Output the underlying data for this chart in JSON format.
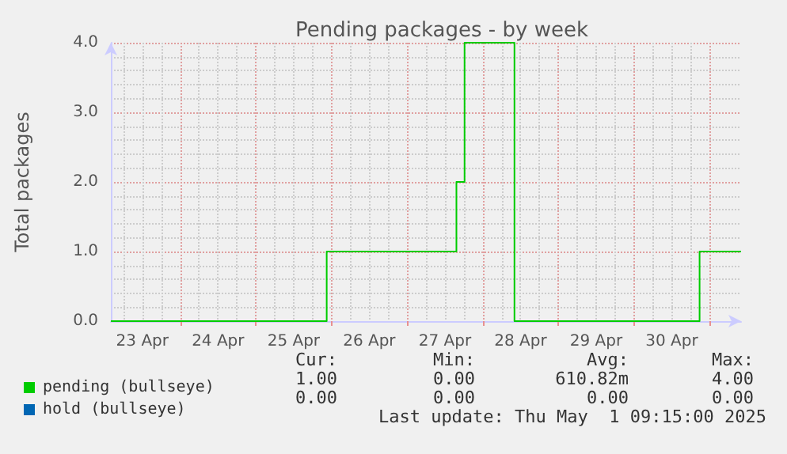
{
  "chart_data": {
    "type": "step",
    "title": "Pending packages - by week",
    "ylabel": "Total packages",
    "xlim": [
      "2025-04-23T02:00",
      "2025-05-01T10:00"
    ],
    "xticks": [
      {
        "value": "2025-04-23T12:00",
        "label": "23 Apr"
      },
      {
        "value": "2025-04-24T00:00",
        "label": null
      },
      {
        "value": "2025-04-24T12:00",
        "label": "24 Apr"
      },
      {
        "value": "2025-04-25T00:00",
        "label": null
      },
      {
        "value": "2025-04-25T12:00",
        "label": "25 Apr"
      },
      {
        "value": "2025-04-26T00:00",
        "label": null
      },
      {
        "value": "2025-04-26T12:00",
        "label": "26 Apr"
      },
      {
        "value": "2025-04-27T00:00",
        "label": null
      },
      {
        "value": "2025-04-27T12:00",
        "label": "27 Apr"
      },
      {
        "value": "2025-04-28T00:00",
        "label": null
      },
      {
        "value": "2025-04-28T12:00",
        "label": "28 Apr"
      },
      {
        "value": "2025-04-29T00:00",
        "label": null
      },
      {
        "value": "2025-04-29T12:00",
        "label": "29 Apr"
      },
      {
        "value": "2025-04-30T00:00",
        "label": null
      },
      {
        "value": "2025-04-30T12:00",
        "label": "30 Apr"
      },
      {
        "value": "2025-05-01T00:00",
        "label": null
      }
    ],
    "ylim": [
      0,
      4
    ],
    "yticks": [
      {
        "value": 0,
        "label": "0.0"
      },
      {
        "value": 1,
        "label": "1.0"
      },
      {
        "value": 2,
        "label": "2.0"
      },
      {
        "value": 3,
        "label": "3.0"
      },
      {
        "value": 4,
        "label": "4.0"
      }
    ],
    "grid": true,
    "legend": "bottom left",
    "marker": "none",
    "series": [
      {
        "name": "pending (bullseye)",
        "color": "#00cc00",
        "x": [
          "2025-04-23T02:00",
          "2025-04-25T22:30",
          "2025-04-27T15:40",
          "2025-04-27T18:15",
          "2025-04-28T10:05",
          "2025-04-30T20:50",
          "2025-05-01T10:00"
        ],
        "values": [
          0,
          1,
          2,
          4,
          0,
          1,
          1
        ]
      },
      {
        "name": "hold (bullseye)",
        "color": "#0066b3"
      }
    ],
    "annotations": [
      "Cur:",
      "Min:",
      "Avg:",
      "Max:",
      "1.00",
      "0.00",
      "610.82m",
      "4.00",
      "0.00",
      "0.00",
      "0.00",
      "0.00",
      "Last update: Thu May  1 09:15:00 2025"
    ]
  }
}
